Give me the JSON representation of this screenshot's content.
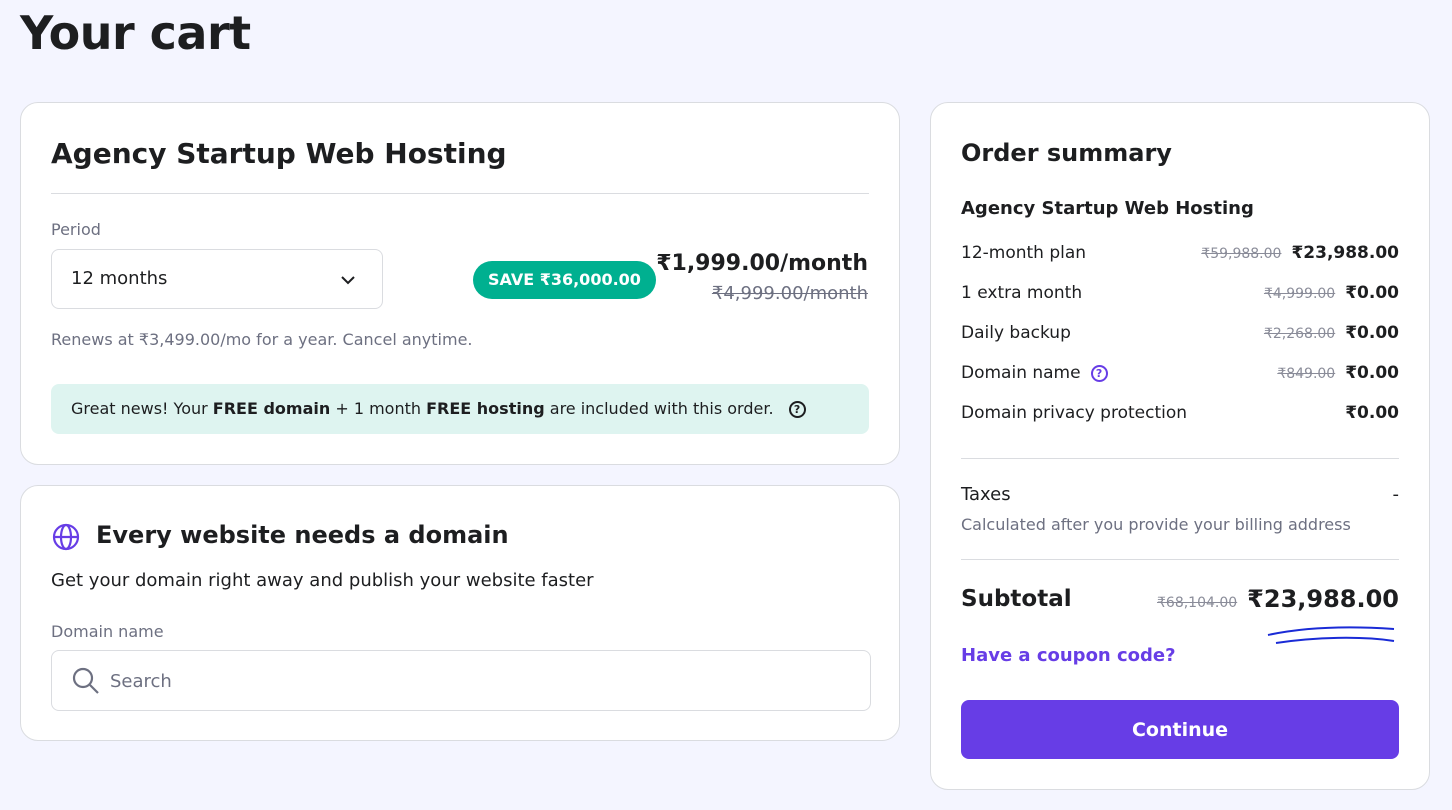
{
  "page_title": "Your cart",
  "product": {
    "name": "Agency Startup Web Hosting",
    "period_label": "Period",
    "period_value": "12 months",
    "save_badge": "SAVE ₹36,000.00",
    "price": "₹1,999.00/month",
    "old_price": "₹4,999.00/month",
    "renew_text": "Renews at ₹3,499.00/mo for a year. Cancel anytime.",
    "banner": {
      "t1": "Great news! Your ",
      "b1": "FREE domain",
      "t2": " + 1 month ",
      "b2": "FREE hosting",
      "t3": " are included with this order."
    }
  },
  "domain": {
    "title": "Every website needs a domain",
    "subtitle": "Get your domain right away and publish your website faster",
    "field_label": "Domain name",
    "placeholder": "Search"
  },
  "summary": {
    "title": "Order summary",
    "product": "Agency Startup Web Hosting",
    "items": [
      {
        "label": "12-month plan",
        "old": "₹59,988.00",
        "price": "₹23,988.00"
      },
      {
        "label": "1 extra month",
        "old": "₹4,999.00",
        "price": "₹0.00"
      },
      {
        "label": "Daily backup",
        "old": "₹2,268.00",
        "price": "₹0.00"
      },
      {
        "label": "Domain name",
        "old": "₹849.00",
        "price": "₹0.00"
      },
      {
        "label": "Domain privacy protection",
        "old": "",
        "price": "₹0.00"
      }
    ],
    "taxes_label": "Taxes",
    "taxes_value": "-",
    "taxes_note": "Calculated after you provide your billing address",
    "subtotal_label": "Subtotal",
    "subtotal_old": "₹68,104.00",
    "subtotal": "₹23,988.00",
    "coupon": "Have a coupon code?",
    "continue": "Continue"
  },
  "colors": {
    "accent": "#673de6",
    "save": "#00b090",
    "banner_bg": "#def4f0",
    "annotation": "#1a2bd6"
  }
}
